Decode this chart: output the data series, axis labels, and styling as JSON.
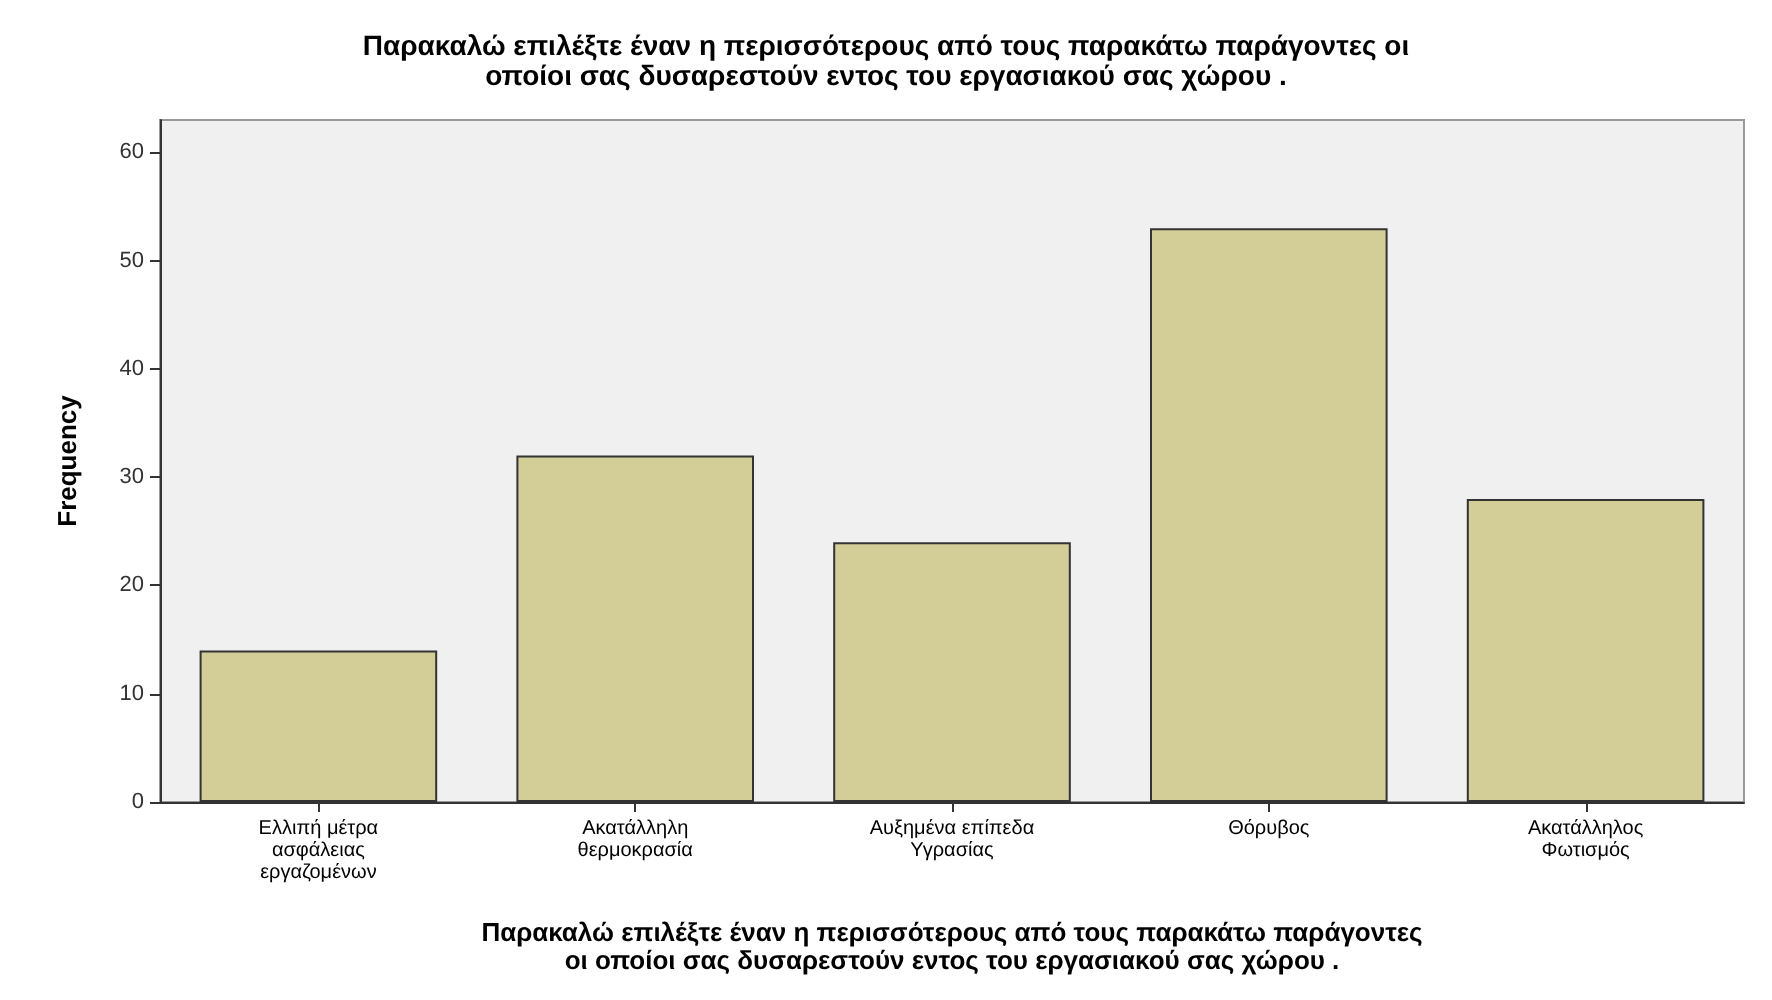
{
  "chart_data": {
    "type": "bar",
    "title": "Παρακαλώ επιλέξτε έναν η περισσότερους από τους παρακάτω παράγοντες οι\nοποίοι σας δυσαρεστούν εντος του εργασιακού σας χώρου .",
    "xlabel": "Παρακαλώ επιλέξτε έναν η περισσότερους από τους παρακάτω παράγοντες\nοι οποίοι σας δυσαρεστούν εντος του εργασιακού σας χώρου .",
    "ylabel": "Frequency",
    "categories": [
      "Ελλιπή μέτρα\nασφάλειας\nεργαζομένων",
      "Ακατάλληλη\nθερμοκρασία",
      "Αυξημένα επίπεδα\nΥγρασίας",
      "Θόρυβος",
      "Ακατάλληλος\nΦωτισμός"
    ],
    "values": [
      14,
      32,
      24,
      53,
      28
    ],
    "color": "#d3ce97",
    "ylim": [
      0,
      63
    ],
    "yticks": [
      0,
      10,
      20,
      30,
      40,
      50,
      60
    ],
    "grid": false
  }
}
